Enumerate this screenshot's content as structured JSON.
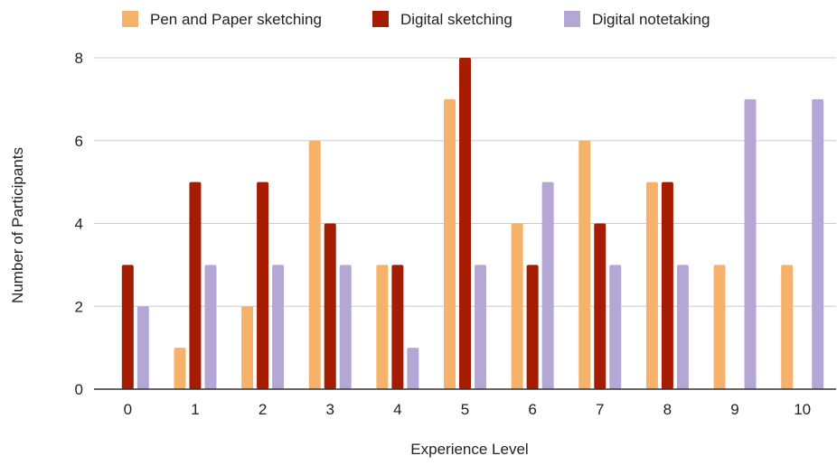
{
  "chart_data": {
    "type": "bar",
    "title": "",
    "xlabel": "Experience Level",
    "ylabel": "Number of Participants",
    "categories": [
      "0",
      "1",
      "2",
      "3",
      "4",
      "5",
      "6",
      "7",
      "8",
      "9",
      "10"
    ],
    "ylim": [
      0,
      8
    ],
    "yticks": [
      "0",
      "2",
      "4",
      "6",
      "8"
    ],
    "grid": true,
    "legend_position": "top",
    "series": [
      {
        "name": "Pen and Paper sketching",
        "color": "#f6b26b",
        "values": [
          0,
          1,
          2,
          6,
          3,
          7,
          4,
          6,
          5,
          3,
          3
        ]
      },
      {
        "name": "Digital sketching",
        "color": "#a61c00",
        "values": [
          3,
          5,
          5,
          4,
          3,
          8,
          3,
          4,
          5,
          0,
          0
        ]
      },
      {
        "name": "Digital notetaking",
        "color": "#b4a7d6",
        "values": [
          2,
          3,
          3,
          3,
          1,
          3,
          5,
          3,
          3,
          7,
          7
        ]
      }
    ]
  }
}
